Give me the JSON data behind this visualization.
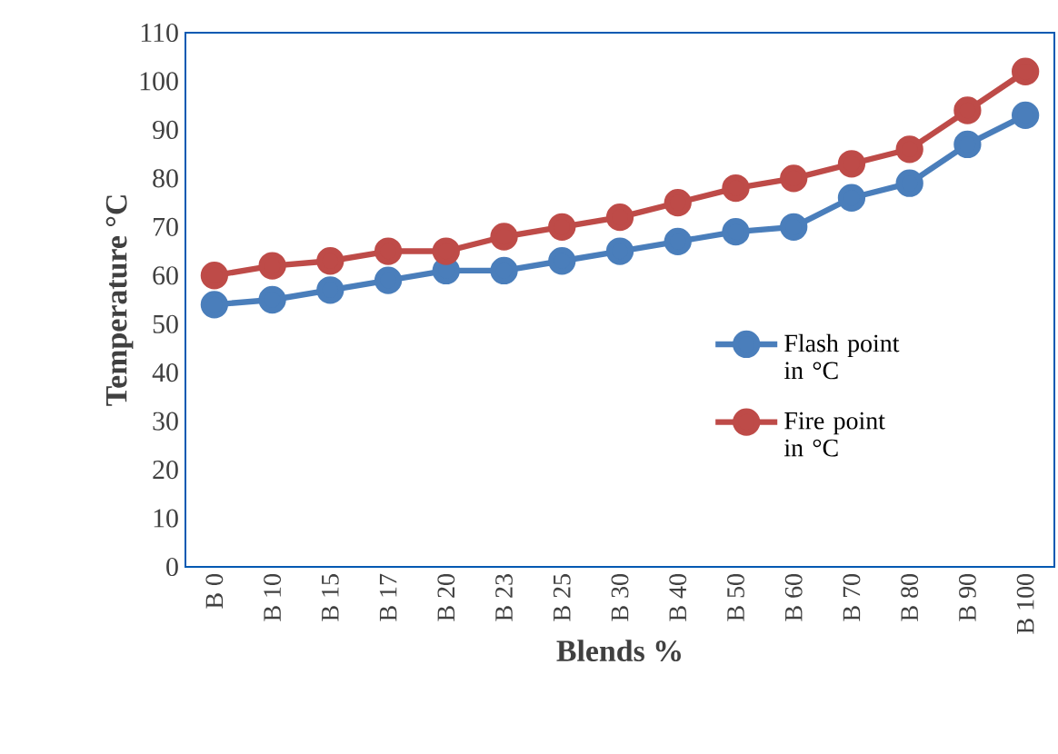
{
  "chart_data": {
    "type": "line",
    "xlabel": "Blends %",
    "ylabel": "Temperature  °C",
    "categories": [
      "B 0",
      "B 10",
      "B 15",
      "B 17",
      "B 20",
      "B 23",
      "B 25",
      "B 30",
      "B 40",
      "B 50",
      "B 60",
      "B 70",
      "B 80",
      "B 90",
      "B 100"
    ],
    "series": [
      {
        "name": "Flash point in °C",
        "color": "#4a7ebb",
        "values": [
          54,
          55,
          57,
          59,
          61,
          61,
          63,
          65,
          67,
          69,
          70,
          76,
          79,
          87,
          93
        ]
      },
      {
        "name": "Fire point in °C",
        "color": "#be4b48",
        "values": [
          60,
          62,
          63,
          65,
          65,
          68,
          70,
          72,
          75,
          78,
          80,
          83,
          86,
          94,
          102
        ]
      }
    ],
    "ylim": [
      0,
      110
    ],
    "yticks": [
      0,
      10,
      20,
      30,
      40,
      50,
      60,
      70,
      80,
      90,
      100,
      110
    ],
    "grid": false,
    "legend": "right",
    "marker": "circle",
    "line_style": "solid"
  }
}
